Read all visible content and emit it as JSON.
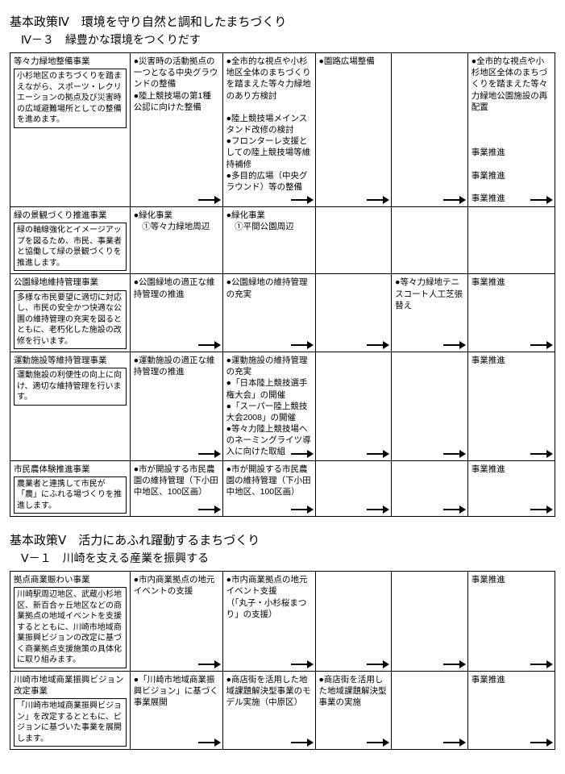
{
  "policy4": {
    "title": "基本政策Ⅳ　環境を守り自然と調和したまちづくり",
    "sub": "Ⅳ－３　緑豊かな環境をつくりだす",
    "rows": [
      {
        "name": "等々力緑地整備事業",
        "desc": "小杉地区のまちづくりを踏まえながら、スポーツ・レクリエーションの拠点及び災害時の広域避難場所としての整備を進めます。",
        "c2": "●災害時の活動拠点の一つとなる中央グラウンドの整備\n●陸上競技場の第1種公認に向けた整備",
        "c3": "●全市的な視点や小杉地区全体のまちづくりを踏まえた等々力緑地のあり方検討\n\n●陸上競技場メインスタンド改修の検討\n●フロンターレ支援としての陸上競技場等維持補修\n●多目的広場（中央グラウンド）等の整備",
        "c4": "●園路広場整備",
        "c5": "",
        "c6": "●全市的な視点や小杉地区全体のまちづくりを踏まえた等々力緑地公園施設の再配置\n\n\n\n事業推進\n\n事業推進\n\n事業推進",
        "arrows": [
          true,
          true,
          true,
          true,
          true
        ]
      },
      {
        "name": "緑の景観づくり推進事業",
        "desc": "緑の軸線強化とイメージアップを図るため、市民、事業者と協働して緑の景観づくりを推進します。",
        "c2": "●緑化事業\n　①等々力緑地周辺",
        "c3": "●緑化事業\n　①平間公園周辺",
        "c4": "",
        "c5": "",
        "c6": "",
        "arrows": []
      },
      {
        "name": "公園緑地維持管理事業",
        "desc": "多様な市民要望に適切に対応し、市民の安全かつ快適な公園の維持管理の充実を図るとともに、老朽化した施設の改修を行います。",
        "c2": "●公園緑地の適正な維持管理の推進",
        "c3": "●公園緑地の維持管理の充実",
        "c4": "",
        "c5": "●等々力緑地テニスコート人工芝張替え",
        "c6": "事業推進",
        "arrows": [
          true,
          true,
          true,
          true,
          true
        ]
      },
      {
        "name": "運動施設等維持管理事業",
        "desc": "運動施設の利便性の向上に向け、適切な維持管理を行います。",
        "c2": "●運動施設の適正な維持管理の推進",
        "c3": "●運動施設の維持管理の充実\n●「日本陸上競技選手権大会」の開催\n●「スーパー陸上競技大会2008」の開催\n●等々力陸上競技場へのネーミングライツ導入に向けた取組",
        "c4": "",
        "c5": "",
        "c6": "事業推進",
        "arrows": [
          true,
          true,
          true,
          true,
          true
        ]
      },
      {
        "name": "市民農体験推進事業",
        "desc": "農業者と連携して市民が「農」にふれる場づくりを推進します。",
        "c2": "●市が開設する市民農園の維持管理（下小田中地区、100区画）",
        "c3": "●市が開設する市民農園の維持管理（下小田中地区、100区画）",
        "c4": "",
        "c5": "",
        "c6": "事業推進",
        "arrows": [
          true,
          true,
          true,
          true,
          true
        ]
      }
    ]
  },
  "policy5": {
    "title": "基本政策Ⅴ　活力にあふれ躍動するまちづくり",
    "sub": "Ⅴ－１　川崎を支える産業を振興する",
    "rows": [
      {
        "name": "拠点商業賑わい事業",
        "desc": "川崎駅周辺地区、武蔵小杉地区、新百合ヶ丘地区などの商業拠点の地域イベントを支援するとともに、川崎市地域商業振興ビジョンの改定に基づく商業拠点支援施策の具体化に取り組みます。",
        "c2": "●市内商業拠点の地元イベントの支援",
        "c3": "●市内商業拠点の地元イベント支援\n（「丸子・小杉桜まつり」の支援）",
        "c4": "",
        "c5": "",
        "c6": "事業推進",
        "arrows": [
          true,
          true,
          true,
          true,
          true
        ]
      },
      {
        "name": "川崎市地域商業振興ビジョン改定事業",
        "desc": "「川崎市地域商業振興ビジョン」を改定するとともに、ビジョンに基づいた事業を展開します。",
        "c2": "●「川崎市地域商業振興ビジョン」に基づく事業展開",
        "c3": "●商店街を活用した地域課題解決型事業のモデル実施（中原区）",
        "c4": "●商店街を活用した地域課題解決型事業の実施",
        "c5": "",
        "c6": "事業推進",
        "arrows": [
          true,
          true,
          true,
          true,
          true
        ]
      }
    ]
  }
}
